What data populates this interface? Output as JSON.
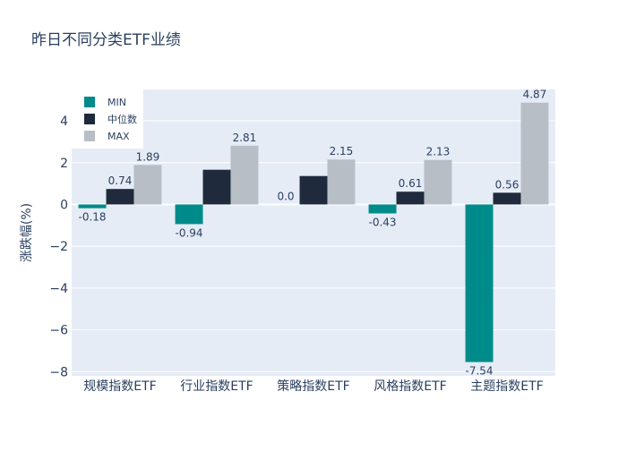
{
  "chart_data": {
    "type": "bar",
    "title": "昨日不同分类ETF业绩",
    "xlabel": "",
    "ylabel": "涨跌幅(%)",
    "categories": [
      "规模指数ETF",
      "行业指数ETF",
      "策略指数ETF",
      "风格指数ETF",
      "主题指数ETF"
    ],
    "series": [
      {
        "name": "MIN",
        "color": "#008b8b",
        "values": [
          -0.18,
          -0.94,
          0.0,
          -0.43,
          -7.54
        ],
        "labels": [
          "-0.18",
          "-0.94",
          "0.0",
          "-0.43",
          "-7.54"
        ]
      },
      {
        "name": "中位数",
        "color": "#1f2a3c",
        "values": [
          0.74,
          1.66,
          1.36,
          0.61,
          0.56
        ],
        "labels": [
          "0.74",
          "",
          "",
          "0.61",
          "0.56"
        ]
      },
      {
        "name": "MAX",
        "color": "#b8bec5",
        "values": [
          1.89,
          2.81,
          2.15,
          2.13,
          4.87
        ],
        "labels": [
          "1.89",
          "2.81",
          "2.15",
          "2.13",
          "4.87"
        ]
      }
    ],
    "yticks": [
      -8,
      -6,
      -4,
      -2,
      0,
      2,
      4
    ],
    "ylim": [
      -8.2,
      5.5
    ],
    "grid": true,
    "legend": "top-left",
    "background": "#e5ecf6"
  }
}
